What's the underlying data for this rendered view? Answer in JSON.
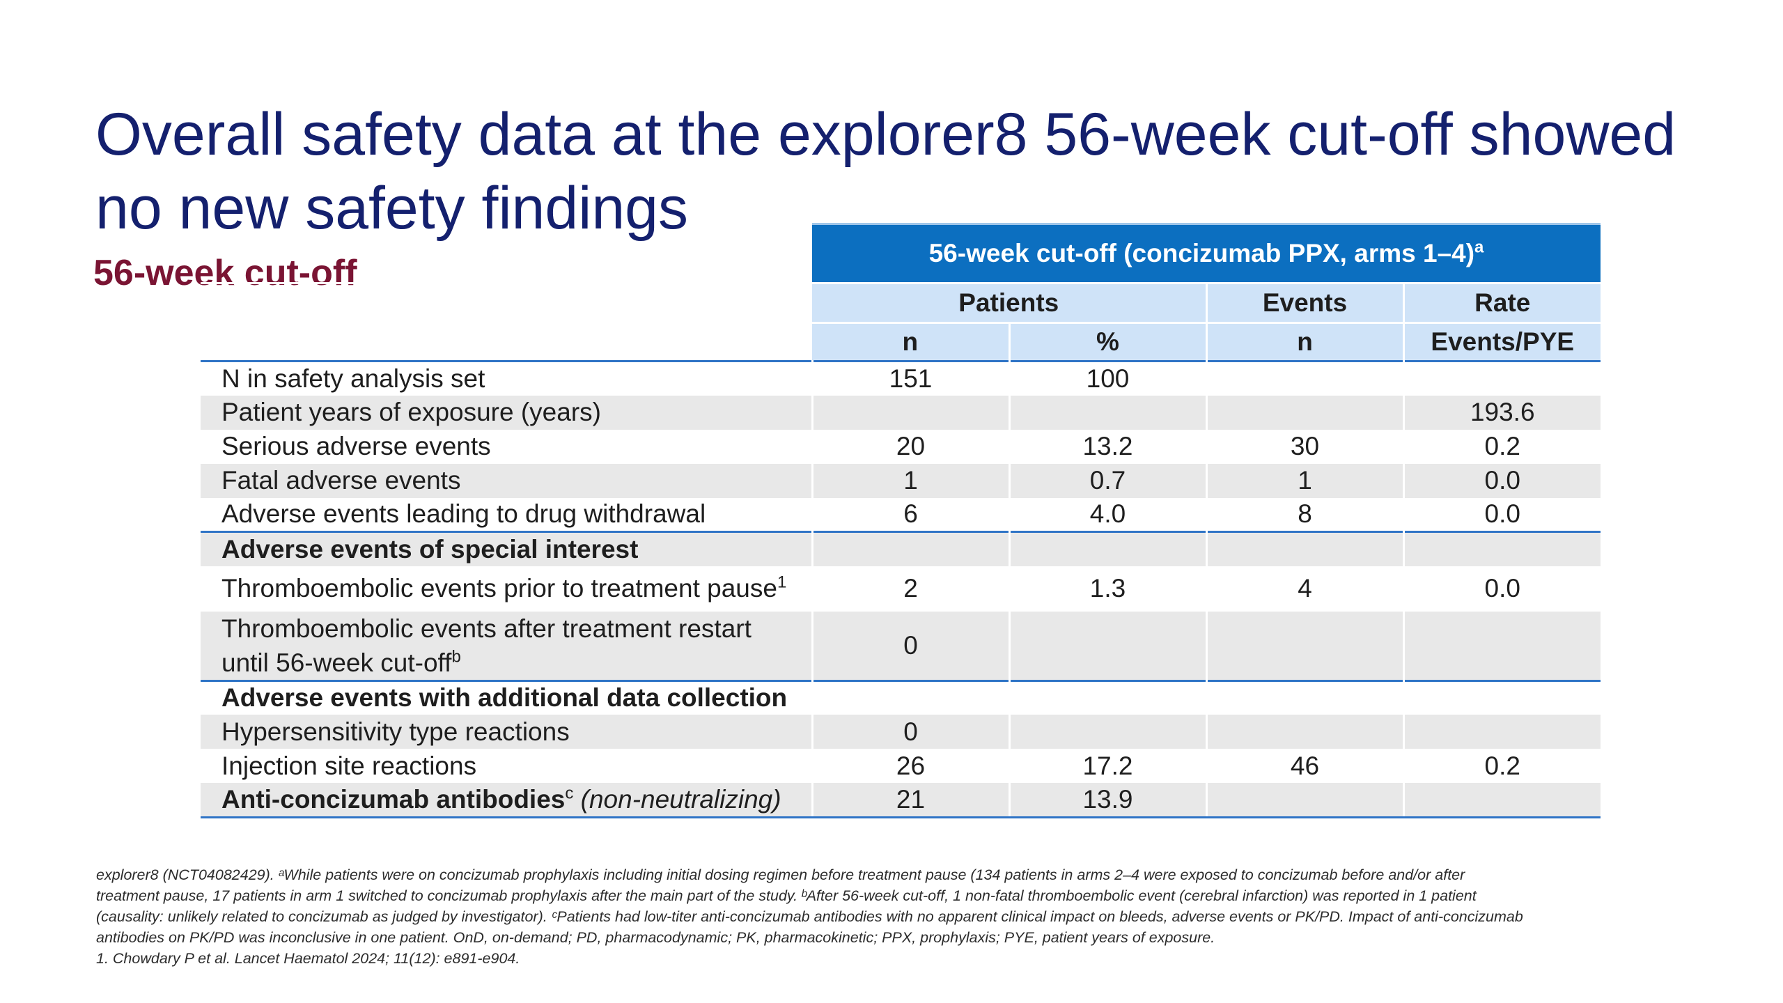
{
  "title": {
    "line1": "Overall safety data at the explorer8 56-week cut-off showed",
    "line2": "no new safety findings"
  },
  "subtitle": "56-week cut-off",
  "table": {
    "header_main": "56-week cut-off (concizumab PPX, arms 1–4)",
    "header_main_sup": "a",
    "groups": {
      "patients": "Patients",
      "events": "Events",
      "rate": "Rate"
    },
    "subheaders": {
      "patients_n": "n",
      "patients_pct": "%",
      "events_n": "n",
      "rate_unit": "Events/PYE"
    },
    "rows": [
      {
        "label": "N in safety analysis set",
        "n": "151",
        "pct": "100",
        "events": "",
        "rate": ""
      },
      {
        "label": "Patient years of exposure (years)",
        "n": "",
        "pct": "",
        "events": "",
        "rate": "193.6"
      },
      {
        "label": "Serious adverse events",
        "n": "20",
        "pct": "13.2",
        "events": "30",
        "rate": "0.2"
      },
      {
        "label": "Fatal adverse events",
        "n": "1",
        "pct": "0.7",
        "events": "1",
        "rate": "0.0"
      },
      {
        "label": "Adverse events leading to drug withdrawal",
        "n": "6",
        "pct": "4.0",
        "events": "8",
        "rate": "0.0"
      }
    ],
    "section1_title": "Adverse events of special interest",
    "row_te_prior": {
      "label": "Thromboembolic events prior to treatment pause",
      "sup": "1",
      "n": "2",
      "pct": "1.3",
      "events": "4",
      "rate": "0.0"
    },
    "row_te_after": {
      "label_line1": "Thromboembolic events after treatment restart",
      "label_line2": "until 56-week cut-off",
      "sup": "b",
      "n": "0"
    },
    "section2_title": "Adverse events with additional data collection",
    "row_hyper": {
      "label": "Hypersensitivity type reactions",
      "n": "0"
    },
    "row_injection": {
      "label": "Injection site reactions",
      "n": "26",
      "pct": "17.2",
      "events": "46",
      "rate": "0.2"
    },
    "row_anti": {
      "label_bold": "Anti-concizumab antibodies",
      "sup": "c",
      "label_italic": " (non-neutralizing)",
      "n": "21",
      "pct": "13.9"
    }
  },
  "footnote": {
    "line1": "explorer8 (NCT04082429). ᵃWhile patients were on concizumab prophylaxis including initial dosing regimen before treatment pause (134 patients in arms 2–4 were exposed to concizumab before and/or after",
    "line2": "treatment pause, 17 patients in arm 1 switched to concizumab prophylaxis after the main part of the study. ᵇAfter 56-week cut-off, 1 non-fatal thromboembolic event (cerebral infarction) was reported in 1 patient",
    "line3": "(causality: unlikely related to concizumab as judged by investigator). ᶜPatients had low-titer anti-concizumab antibodies with no apparent clinical impact on bleeds, adverse events or PK/PD. Impact of anti-concizumab",
    "line4": "antibodies on PK/PD was inconclusive in one patient. OnD, on-demand; PD, pharmacodynamic; PK, pharmacokinetic; PPX, prophylaxis; PYE, patient years of exposure.",
    "line5": "1. Chowdary P et al. Lancet Haematol 2024; 11(12): e891-e904."
  }
}
